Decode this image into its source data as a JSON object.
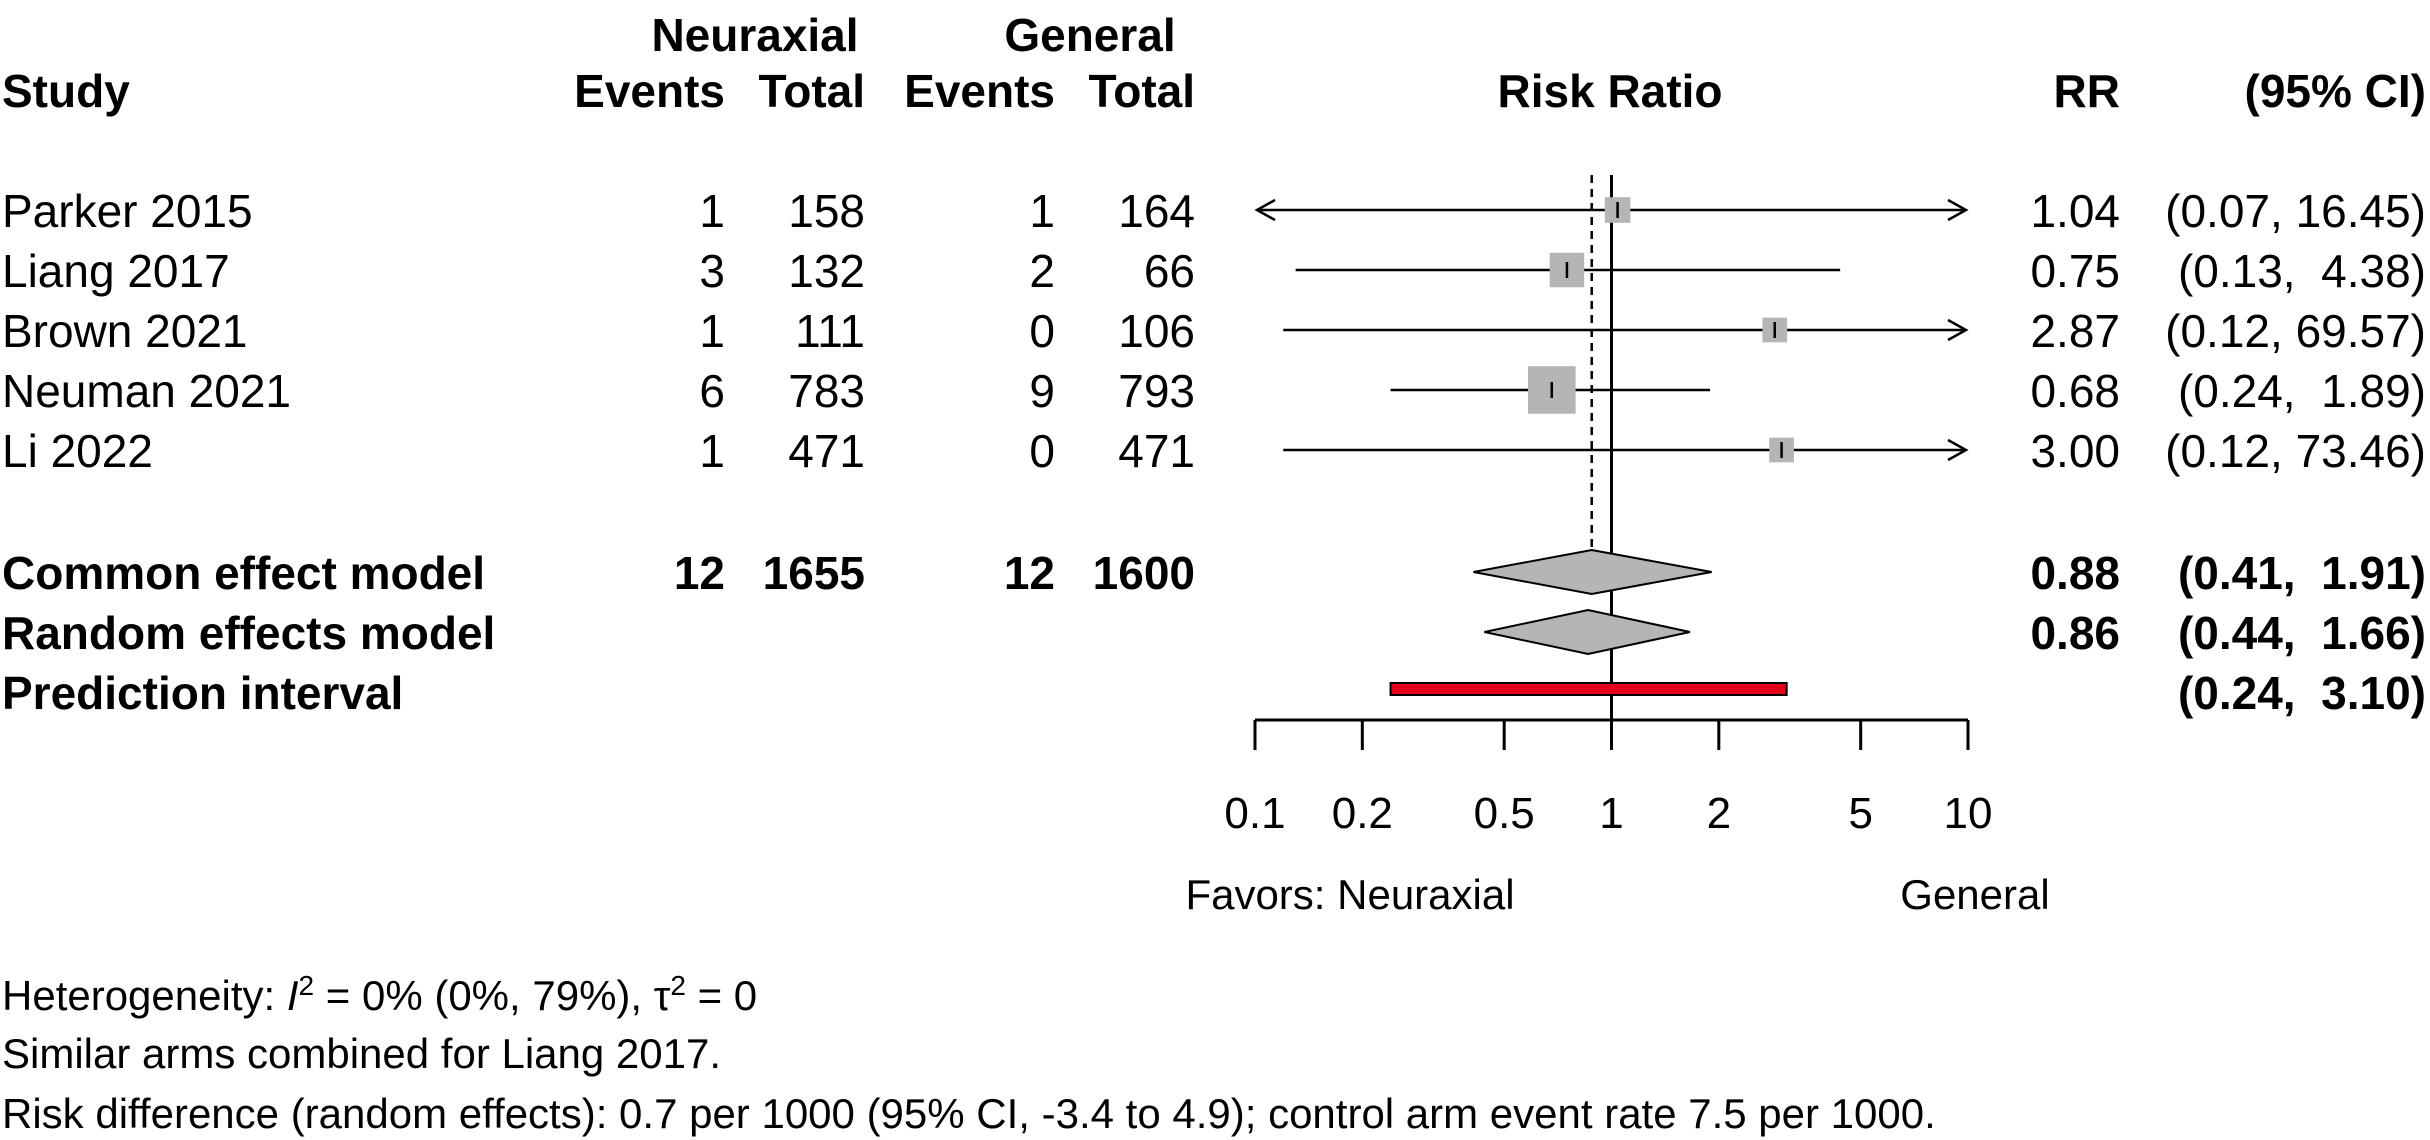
{
  "header": {
    "group1": "Neuraxial",
    "group2": "General",
    "study": "Study",
    "events": "Events",
    "total": "Total",
    "risk_ratio": "Risk Ratio",
    "rr": "RR",
    "ci": "(95% CI)"
  },
  "studies": [
    {
      "name": "Parker 2015",
      "e1": "1",
      "n1": "158",
      "e2": "1",
      "n2": "164",
      "rr_text": "1.04",
      "ci_text": "(0.07, 16.45)",
      "rr": 1.04,
      "lo": 0.07,
      "hi": 16.45,
      "weight": 0.08
    },
    {
      "name": "Liang 2017",
      "e1": "3",
      "n1": "132",
      "e2": "2",
      "n2": "66",
      "rr_text": "0.75",
      "ci_text": "(0.13,  4.38)",
      "rr": 0.75,
      "lo": 0.13,
      "hi": 4.38,
      "weight": 0.22
    },
    {
      "name": "Brown 2021",
      "e1": "1",
      "n1": "111",
      "e2": "0",
      "n2": "106",
      "rr_text": "2.87",
      "ci_text": "(0.12, 69.57)",
      "rr": 2.87,
      "lo": 0.12,
      "hi": 69.57,
      "weight": 0.07
    },
    {
      "name": "Neuman 2021",
      "e1": "6",
      "n1": "783",
      "e2": "9",
      "n2": "793",
      "rr_text": "0.68",
      "ci_text": "(0.24,  1.89)",
      "rr": 0.68,
      "lo": 0.24,
      "hi": 1.89,
      "weight": 0.55
    },
    {
      "name": "Li 2022",
      "e1": "1",
      "n1": "471",
      "e2": "0",
      "n2": "471",
      "rr_text": "3.00",
      "ci_text": "(0.12, 73.46)",
      "rr": 3.0,
      "lo": 0.12,
      "hi": 73.46,
      "weight": 0.07
    }
  ],
  "summary": {
    "common": {
      "label": "Common effect model",
      "e1": "12",
      "n1": "1655",
      "e2": "12",
      "n2": "1600",
      "rr_text": "0.88",
      "ci_text": "(0.41,  1.91)",
      "rr": 0.88,
      "lo": 0.41,
      "hi": 1.91
    },
    "random": {
      "label": "Random effects model",
      "rr_text": "0.86",
      "ci_text": "(0.44,  1.66)",
      "rr": 0.86,
      "lo": 0.44,
      "hi": 1.66
    },
    "prediction": {
      "label": "Prediction interval",
      "ci_text": "(0.24,  3.10)",
      "lo": 0.24,
      "hi": 3.1
    }
  },
  "chart_data": {
    "type": "forest",
    "x_scale": "log",
    "xlim": [
      0.1,
      10
    ],
    "x_ticks": [
      0.1,
      0.2,
      0.5,
      1,
      2,
      5,
      10
    ],
    "x_tick_labels": [
      "0.1",
      "0.2",
      "0.5",
      "1",
      "2",
      "5",
      "10"
    ],
    "null_line": 1,
    "common_line": 0.88,
    "xlabel_left": "Favors: Neuraxial",
    "xlabel_right": "General",
    "colors": {
      "box": "#b5b5b5",
      "diamond": "#b5b5b5",
      "prediction": "#e3001b"
    }
  },
  "footnotes": {
    "het_prefix": "Heterogeneity: ",
    "het_i": "I",
    "het_sup": "2",
    "het_mid": " = 0% (0%, 79%), ",
    "het_tau": "τ",
    "het_tau_sup": "2",
    "het_end": " = 0",
    "line2": "Similar arms combined for Liang 2017.",
    "line3": "Risk difference (random effects): 0.7 per 1000 (95% CI, -3.4 to 4.9); control arm event rate 7.5 per 1000."
  }
}
